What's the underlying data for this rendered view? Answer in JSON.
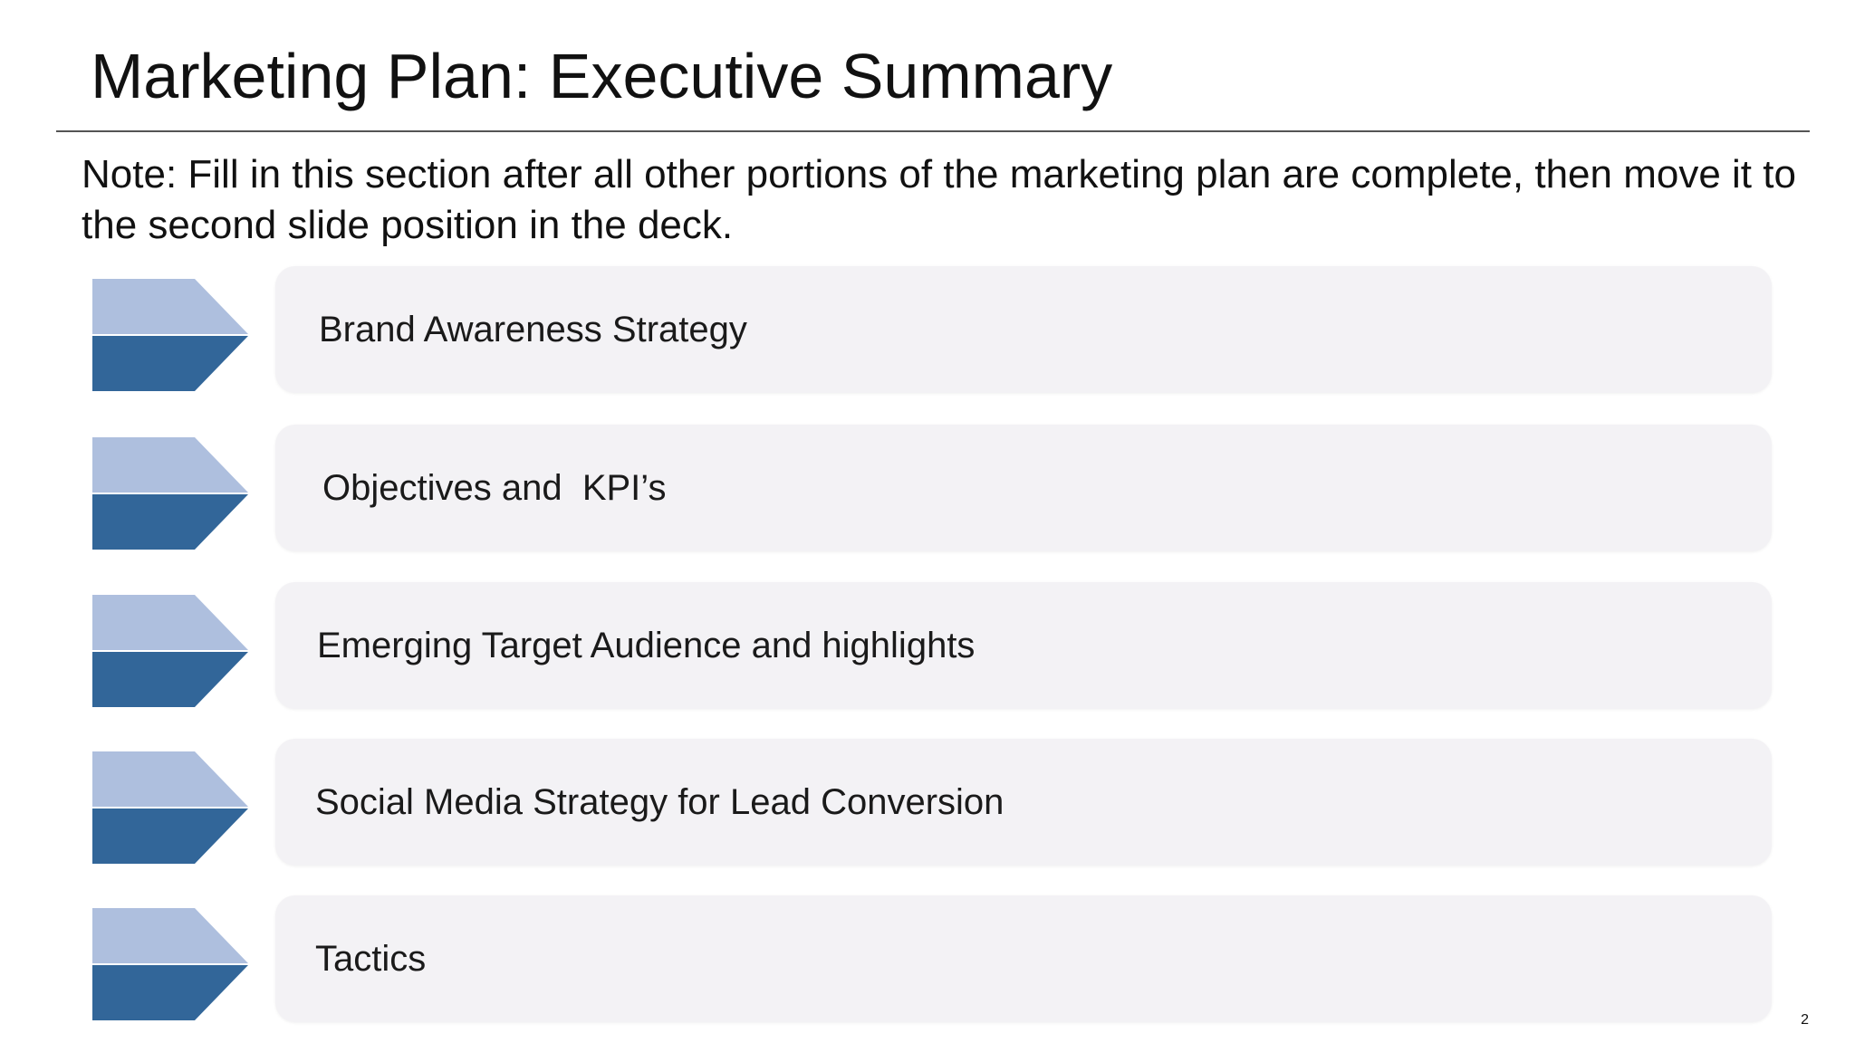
{
  "slide": {
    "title": "Marketing Plan: Executive Summary",
    "note": "Note: Fill in this section after all other portions of the marketing plan are complete, then move it to the second slide position in the deck.",
    "sections": [
      {
        "label": "Brand Awareness Strategy"
      },
      {
        "label": "Objectives and  KPI’s"
      },
      {
        "label": "Emerging Target Audience and highlights"
      },
      {
        "label": "Social Media Strategy for Lead Conversion"
      },
      {
        "label": "Tactics"
      }
    ],
    "page_number": "2"
  },
  "colors": {
    "chevron_light": "#aebfde",
    "chevron_dark": "#326699",
    "card_background": "#f3f2f5"
  },
  "icons": {
    "section_marker": "chevron-right-icon"
  }
}
